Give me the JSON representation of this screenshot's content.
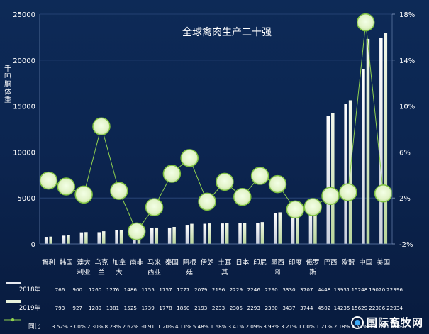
{
  "chart_data": {
    "type": "bar",
    "title": "全球禽肉生产二十强",
    "ylabel": "千吨　胴体重",
    "ylim": [
      0,
      25000
    ],
    "yticks": [
      0,
      5000,
      10000,
      15000,
      20000,
      25000
    ],
    "y2lim": [
      -2,
      18
    ],
    "y2ticks": [
      "-2%",
      "2%",
      "6%",
      "10%",
      "14%",
      "18%"
    ],
    "categories": [
      "智利",
      "韩国",
      "澳大利亚",
      "乌克兰",
      "加拿大",
      "南非",
      "马来西亚",
      "泰国",
      "阿根廷",
      "伊朗",
      "土耳其",
      "日本",
      "印尼",
      "墨西哥",
      "印度",
      "俄罗斯",
      "巴西",
      "欧盟",
      "中国",
      "美国"
    ],
    "category_lines": [
      [
        "智利"
      ],
      [
        "韩国"
      ],
      [
        "澳大",
        "利亚"
      ],
      [
        "乌克",
        "兰"
      ],
      [
        "加拿",
        "大"
      ],
      [
        "南非"
      ],
      [
        "马来",
        "西亚"
      ],
      [
        "泰国"
      ],
      [
        "阿根",
        "廷"
      ],
      [
        "伊朗"
      ],
      [
        "土耳",
        "其"
      ],
      [
        "日本"
      ],
      [
        "印尼"
      ],
      [
        "墨西",
        "哥"
      ],
      [
        "印度"
      ],
      [
        "俄罗",
        "斯"
      ],
      [
        "巴西"
      ],
      [
        "欧盟"
      ],
      [
        "中国"
      ],
      [
        "美国"
      ]
    ],
    "series": [
      {
        "name": "2018年",
        "type": "bar",
        "color": "#dfe3ee",
        "values": [
          766,
          900,
          1260,
          1276,
          1486,
          1755,
          1757,
          1777,
          2079,
          2196,
          2229,
          2246,
          2290,
          3330,
          3707,
          4448,
          13931,
          15248,
          19020,
          22396
        ],
        "labels": [
          "766",
          "900",
          "1260",
          "1276",
          "1486",
          "1755",
          "1757",
          "1777",
          "2079",
          "2196",
          "2229",
          "2246",
          "2290",
          "3330",
          "3707",
          "4448",
          "13931",
          "15248",
          "19020",
          "22396"
        ]
      },
      {
        "name": "2019年",
        "type": "bar",
        "color": "#eef4e4",
        "values": [
          793,
          927,
          1289,
          1381,
          1525,
          1739,
          1778,
          1850,
          2193,
          2233,
          2305,
          2293,
          2380,
          3437,
          3744,
          4502,
          14235,
          15629,
          22306,
          22934
        ],
        "labels": [
          "793",
          "927",
          "1289",
          "1381",
          "1525",
          "1739",
          "1778",
          "1850",
          "2193",
          "2233",
          "2305",
          "2293",
          "2380",
          "3437",
          "3744",
          "4502",
          "14235",
          "15629",
          "22306",
          "22934"
        ]
      },
      {
        "name": "同比",
        "type": "line",
        "axis": "right",
        "color": "#8fd14f",
        "values": [
          3.52,
          3.0,
          2.3,
          8.23,
          2.62,
          -0.91,
          1.2,
          4.11,
          5.48,
          1.68,
          3.41,
          2.09,
          3.93,
          3.21,
          1.0,
          1.21,
          2.18,
          2.5,
          17.28,
          2.4
        ],
        "labels": [
          "3.52%",
          "3.00%",
          "2.30%",
          "8.23%",
          "2.62%",
          "-0.91",
          "1.20%",
          "4.11%",
          "5.48%",
          "1.68%",
          "3.41%",
          "2.09%",
          "3.93%",
          "3.21%",
          "1.00%",
          "1.21%",
          "2.18%",
          "2.50%",
          "17.28",
          "2.40%"
        ]
      }
    ]
  },
  "watermark": {
    "text": "国际畜牧网",
    "icon": "globe-logo-icon"
  }
}
